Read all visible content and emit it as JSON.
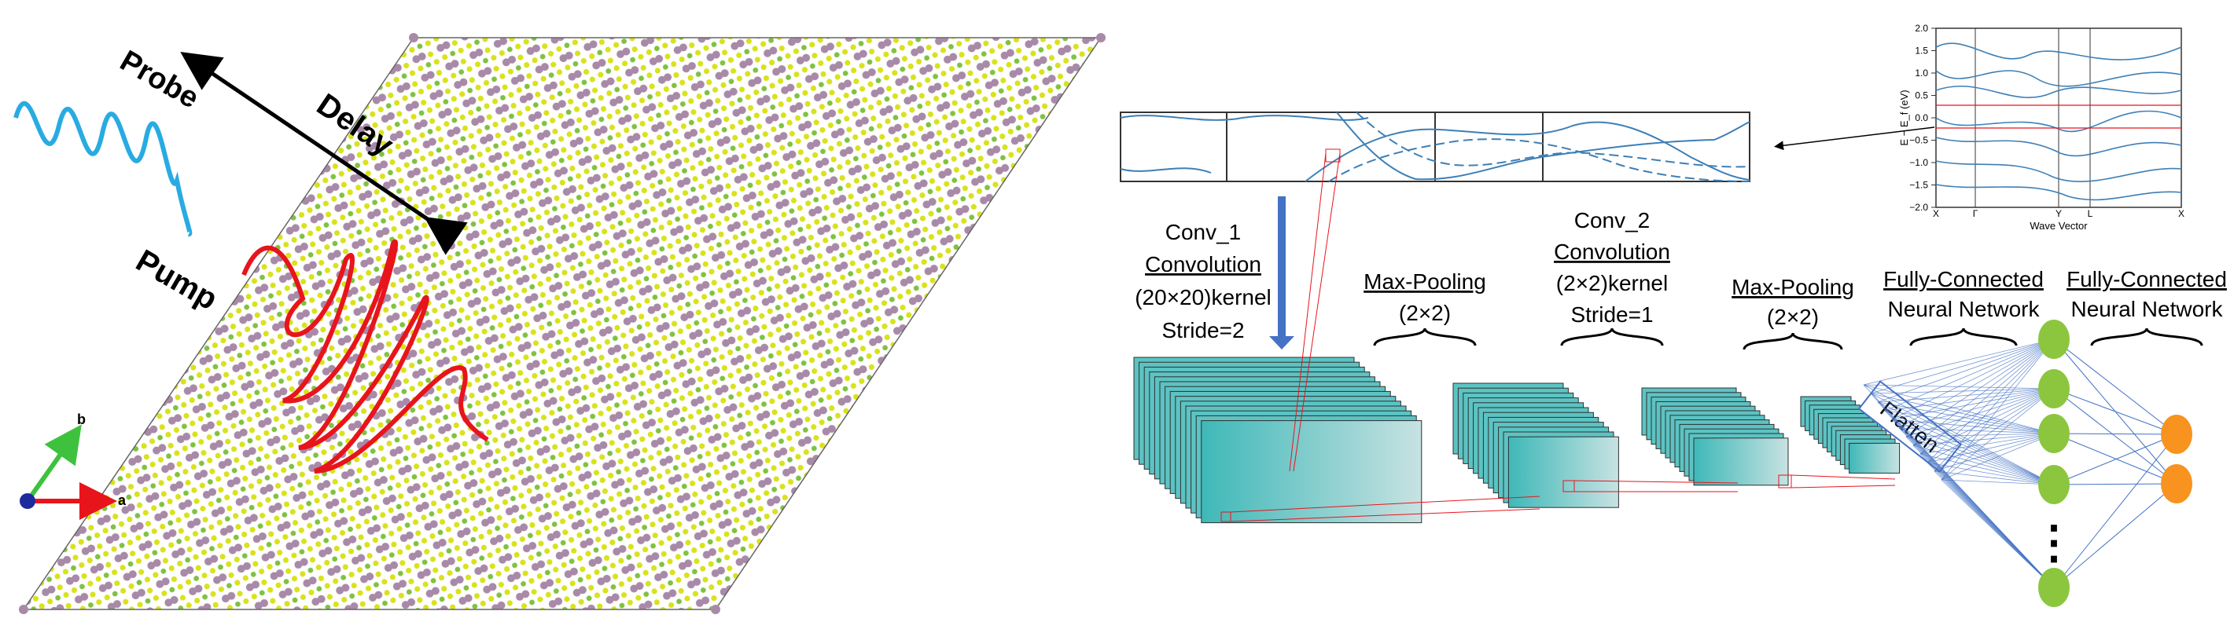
{
  "left_panel": {
    "probe_label": "Probe",
    "pump_label": "Pump",
    "delay_label": "Delay",
    "axis_a": "a",
    "axis_b": "b",
    "colors": {
      "probe": "#29abe2",
      "pump": "#e8141c",
      "atom_purple": "#a88aa8",
      "atom_yellow": "#d9e21c",
      "atom_green": "#7fc241"
    }
  },
  "band_plot": {
    "y_ticks": [
      "2.0",
      "1.5",
      "1.0",
      "0.5",
      "0.0",
      "−0.5",
      "−1.0",
      "−1.5",
      "−2.0"
    ],
    "x_ticks": [
      "X",
      "Γ",
      "Y",
      "L",
      "X"
    ],
    "ylabel": "E − E_f (eV)",
    "xlabel": "Wave Vector"
  },
  "cnn": {
    "conv1": {
      "title": "Conv_1",
      "type": "Convolution",
      "kernel": "(20×20)kernel",
      "stride": "Stride=2"
    },
    "pool1": {
      "title": "Max-Pooling",
      "size": "(2×2)"
    },
    "conv2": {
      "title": "Conv_2",
      "type": "Convolution",
      "kernel": "(2×2)kernel",
      "stride": "Stride=1"
    },
    "pool2": {
      "title": "Max-Pooling",
      "size": "(2×2)"
    },
    "fc1": {
      "line1": "Fully-Connected",
      "line2": "Neural Network"
    },
    "fc2": {
      "line1": "Fully-Connected",
      "line2": "Neural Network"
    },
    "flatten": "Flatten",
    "ellipsis": "⋮",
    "colors": {
      "feature_map": "#5cc3c3",
      "node_hidden": "#8cc63f",
      "node_output": "#f7931e",
      "arrow": "#4472c4"
    }
  }
}
